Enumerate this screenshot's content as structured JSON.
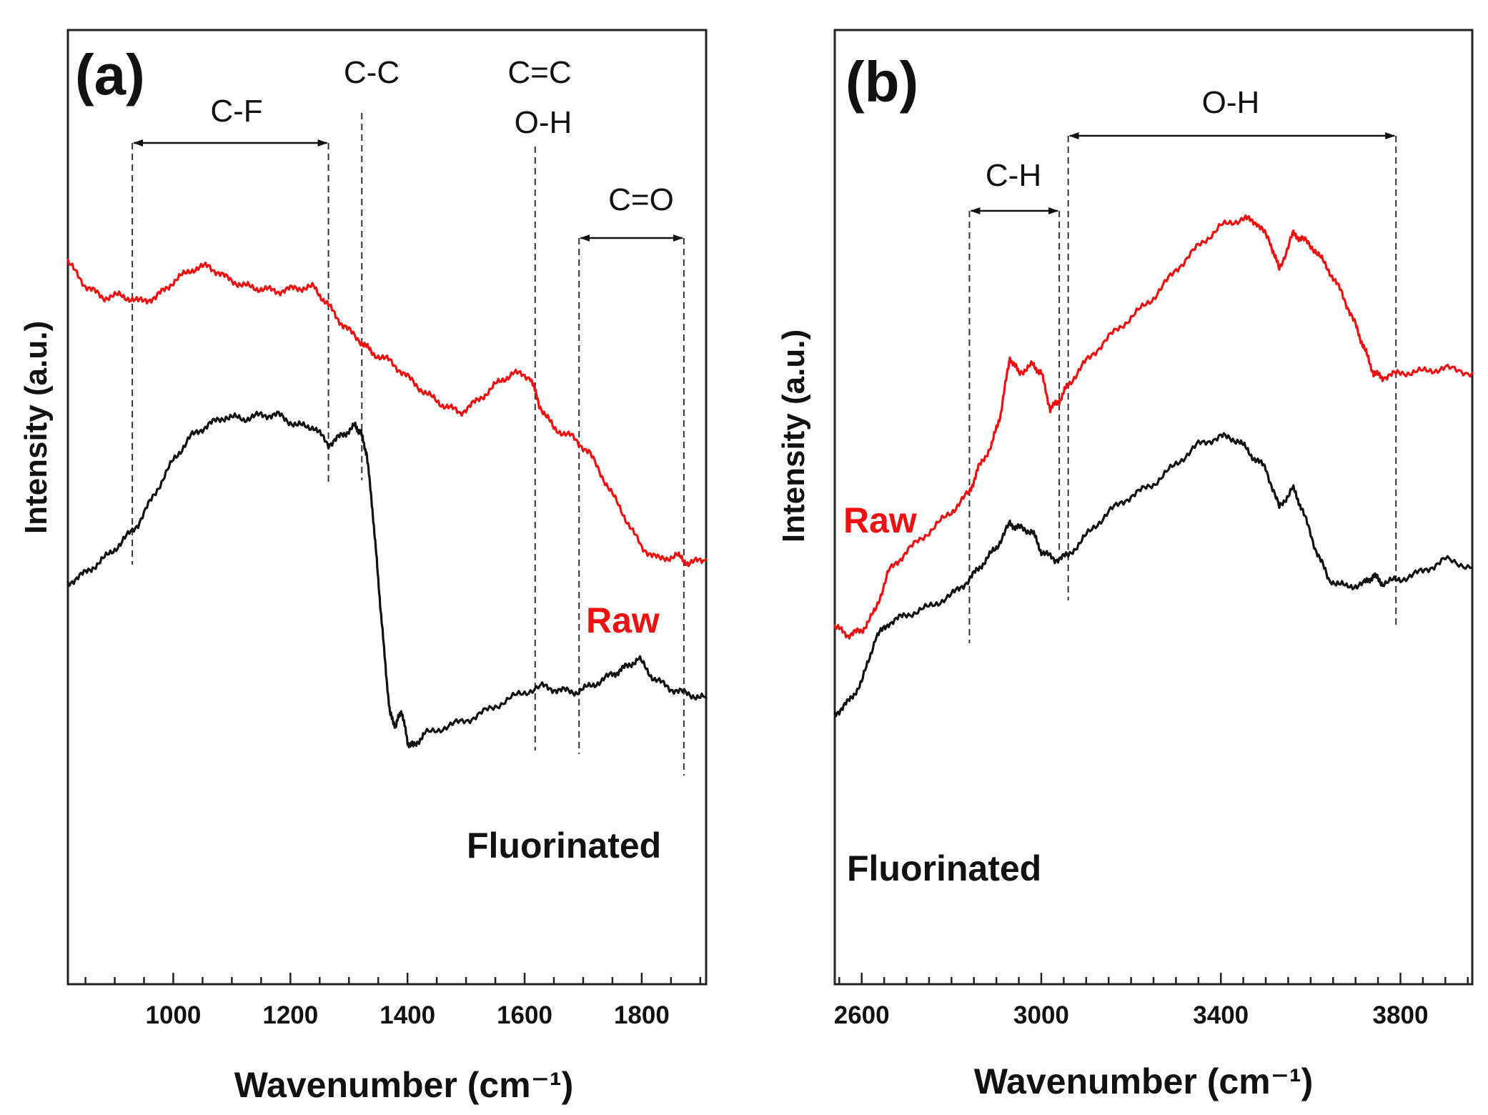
{
  "colors": {
    "raw": "#ee1111",
    "fluorinated": "#111111",
    "axis": "#222222"
  },
  "chart_data": [
    {
      "type": "line",
      "panel_label": "(a)",
      "xlabel": "Wavenumber (cm⁻¹)",
      "ylabel": "Intensity (a.u.)",
      "xlim": [
        820,
        1910
      ],
      "ylim": [
        0,
        100
      ],
      "xticks": [
        1000,
        1200,
        1400,
        1600,
        1800
      ],
      "minor_step": 50,
      "series": [
        {
          "name": "Raw",
          "color_key": "raw",
          "x": [
            820,
            850,
            880,
            910,
            940,
            970,
            1000,
            1030,
            1060,
            1090,
            1120,
            1150,
            1180,
            1210,
            1240,
            1265,
            1290,
            1320,
            1340,
            1370,
            1400,
            1430,
            1460,
            1490,
            1520,
            1550,
            1580,
            1610,
            1625,
            1650,
            1680,
            1710,
            1740,
            1770,
            1800,
            1830,
            1860,
            1880,
            1910
          ],
          "y": [
            76,
            73,
            71.5,
            71.8,
            71,
            71.5,
            73.5,
            75,
            75.5,
            74,
            73,
            72.6,
            72.3,
            72.7,
            72.8,
            70.5,
            68,
            66,
            64.5,
            63.5,
            61.5,
            59.5,
            58,
            57,
            58.5,
            60.5,
            62,
            61.5,
            58,
            55,
            54,
            52,
            48,
            44,
            40,
            38.5,
            39,
            38,
            38.5
          ]
        },
        {
          "name": "Fluorinated",
          "color_key": "fluorinated",
          "x": [
            820,
            850,
            880,
            910,
            940,
            970,
            1000,
            1030,
            1060,
            1090,
            1120,
            1150,
            1180,
            1210,
            1240,
            1265,
            1290,
            1310,
            1320,
            1330,
            1340,
            1350,
            1360,
            1370,
            1380,
            1390,
            1400,
            1410,
            1430,
            1470,
            1510,
            1550,
            1590,
            1630,
            1660,
            1690,
            1720,
            1750,
            1770,
            1795,
            1820,
            1850,
            1880,
            1910
          ],
          "y": [
            35.5,
            36.8,
            38.5,
            40.5,
            43,
            47,
            51,
            54,
            55.5,
            56.5,
            56.2,
            56.7,
            56.7,
            55.4,
            55.2,
            53,
            54.2,
            55.3,
            54.5,
            52,
            45,
            36,
            27,
            19,
            17.5,
            19.5,
            15.5,
            15,
            16.5,
            17.5,
            18.5,
            20,
            21.5,
            22.5,
            22,
            21.8,
            22.8,
            24,
            24.8,
            26,
            23.5,
            22.2,
            21.5,
            21
          ]
        }
      ],
      "annotations": [
        {
          "text": "C-F",
          "type": "span",
          "x1": 930,
          "x2": 1265
        },
        {
          "text": "C-C",
          "type": "line",
          "x": 1322
        },
        {
          "lines": [
            "C=C",
            "O-H"
          ],
          "type": "line",
          "x": 1618
        },
        {
          "text": "C=O",
          "type": "span",
          "x1": 1693,
          "x2": 1872
        }
      ],
      "series_labels": [
        "Raw",
        "Fluorinated"
      ]
    },
    {
      "type": "line",
      "panel_label": "(b)",
      "xlabel": "Wavenumber (cm⁻¹)",
      "ylabel": "Intensity (a.u.)",
      "xlim": [
        2540,
        3960
      ],
      "ylim": [
        0,
        100
      ],
      "xticks": [
        2600,
        3000,
        3400,
        3800
      ],
      "minor_step": 50,
      "series": [
        {
          "name": "Raw",
          "color_key": "raw",
          "x": [
            2540,
            2570,
            2600,
            2630,
            2660,
            2700,
            2750,
            2800,
            2840,
            2860,
            2890,
            2910,
            2930,
            2950,
            2980,
            3000,
            3020,
            3040,
            3060,
            3100,
            3150,
            3200,
            3250,
            3300,
            3350,
            3400,
            3450,
            3480,
            3510,
            3530,
            3560,
            3580,
            3610,
            3640,
            3670,
            3700,
            3720,
            3740,
            3760,
            3800,
            3850,
            3900,
            3960
          ],
          "y": [
            30,
            29,
            29.5,
            32,
            37,
            39.5,
            42,
            44.5,
            47,
            50,
            53,
            57,
            64,
            62,
            63,
            62,
            57.5,
            58.5,
            60.5,
            63.5,
            66.5,
            69,
            71.5,
            75,
            78,
            80.5,
            81.5,
            81,
            78.5,
            75,
            79.5,
            79,
            77.5,
            75,
            72,
            68,
            65,
            62,
            61.5,
            62,
            62.2,
            62.6,
            62
          ]
        },
        {
          "name": "Fluorinated",
          "color_key": "fluorinated",
          "x": [
            2540,
            2570,
            2600,
            2630,
            2660,
            2700,
            2750,
            2800,
            2840,
            2870,
            2900,
            2930,
            2950,
            2980,
            3000,
            3030,
            3060,
            3100,
            3150,
            3200,
            3250,
            3300,
            3350,
            3400,
            3440,
            3470,
            3500,
            3530,
            3560,
            3580,
            3610,
            3640,
            3680,
            3720,
            3740,
            3760,
            3800,
            3850,
            3900,
            3960
          ],
          "y": [
            19,
            20.5,
            23,
            28.5,
            30.5,
            31.5,
            32.5,
            34,
            36,
            38,
            40,
            43,
            42.5,
            42,
            39.5,
            38.5,
            39,
            41.5,
            44.5,
            46.5,
            48,
            50.5,
            53,
            54,
            53.5,
            51.5,
            50,
            45,
            47.5,
            45,
            40,
            36,
            35,
            35.5,
            36.5,
            35.5,
            36,
            37,
            38.5,
            37.5
          ]
        }
      ],
      "annotations": [
        {
          "text": "C-H",
          "type": "span",
          "x1": 2840,
          "x2": 3040
        },
        {
          "text": "O-H",
          "type": "span",
          "x1": 3060,
          "x2": 3790
        }
      ],
      "series_labels": [
        "Raw",
        "Fluorinated"
      ]
    }
  ]
}
